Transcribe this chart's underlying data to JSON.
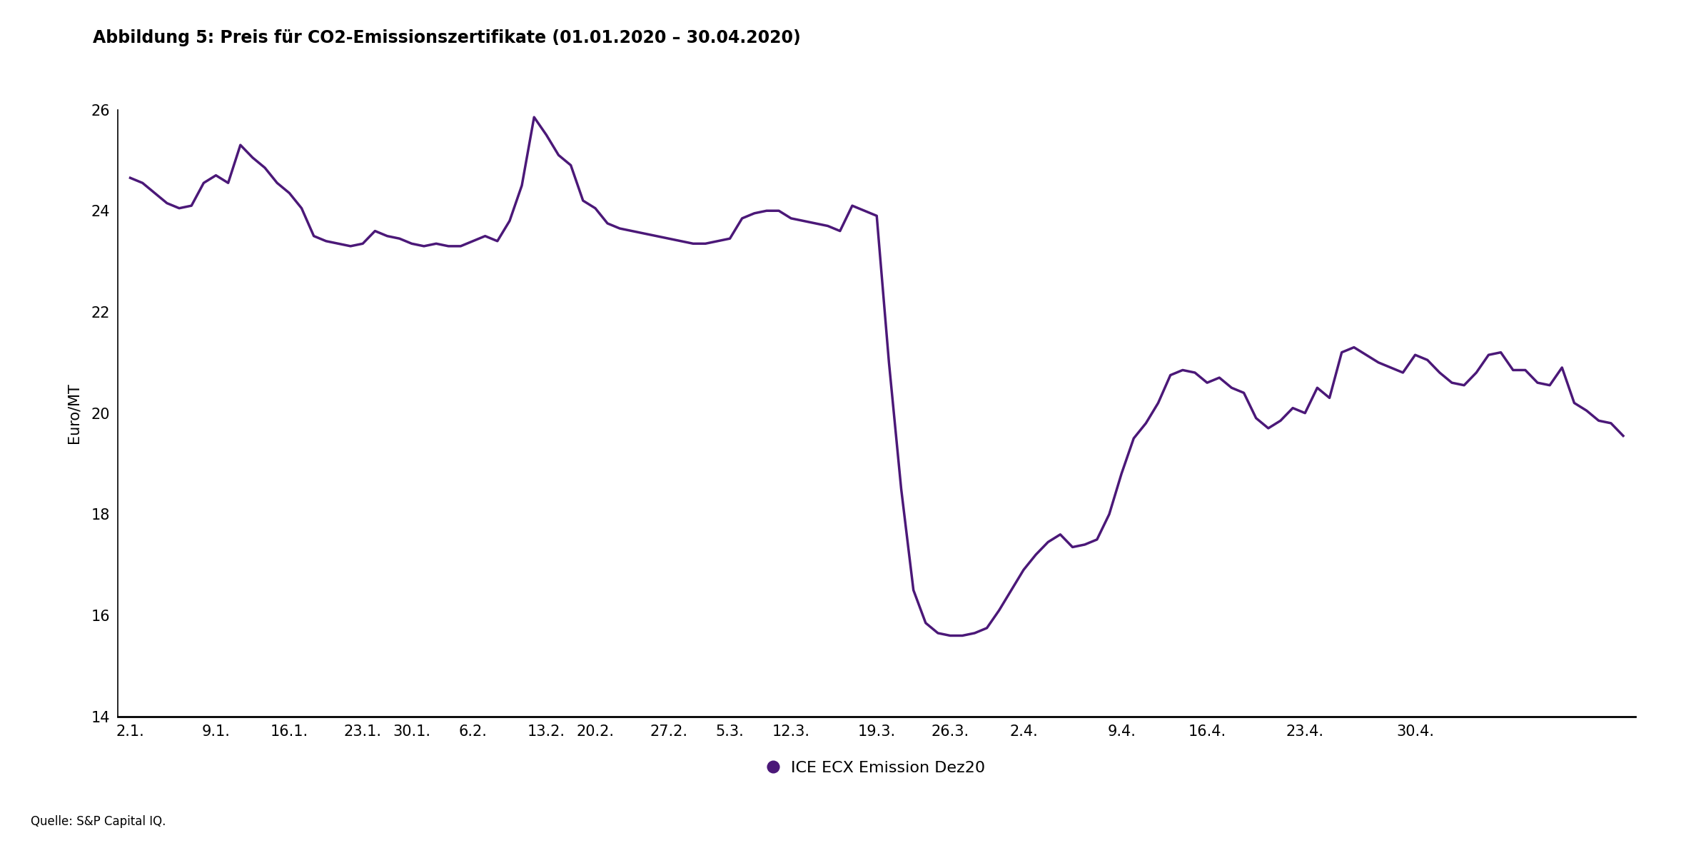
{
  "title": "Abbildung 5: Preis für CO2-Emissionszertifikate (01.01.2020 – 30.04.2020)",
  "ylabel": "Euro/MT",
  "source": "Quelle: S&P Capital IQ.",
  "legend_label": "ICE ECX Emission Dez20",
  "line_color": "#4B1878",
  "background_color": "#ffffff",
  "ylim": [
    14,
    26
  ],
  "yticks": [
    14,
    16,
    18,
    20,
    22,
    24,
    26
  ],
  "xtick_labels": [
    "2.1.",
    "9.1.",
    "16.1.",
    "23.1.",
    "30.1.",
    "6.2.",
    "13.2.",
    "20.2.",
    "27.2.",
    "5.3.",
    "12.3.",
    "19.3.",
    "26.3.",
    "2.4.",
    "9.4.",
    "16.4.",
    "23.4.",
    "30.4."
  ],
  "line_width": 2.5,
  "title_fontsize": 17,
  "axis_fontsize": 15,
  "tick_fontsize": 15,
  "source_fontsize": 12,
  "y_data": [
    24.65,
    24.55,
    24.35,
    24.15,
    24.05,
    24.1,
    24.55,
    24.7,
    24.55,
    25.3,
    25.05,
    24.85,
    24.55,
    24.35,
    24.05,
    23.5,
    23.4,
    23.35,
    23.3,
    23.35,
    23.6,
    23.5,
    23.45,
    23.35,
    23.3,
    23.35,
    23.3,
    23.3,
    23.4,
    23.5,
    23.4,
    23.8,
    24.5,
    25.85,
    25.5,
    25.1,
    24.9,
    24.2,
    24.05,
    23.75,
    23.65,
    23.6,
    23.55,
    23.5,
    23.45,
    23.4,
    23.35,
    23.35,
    23.4,
    23.45,
    23.85,
    23.95,
    24.0,
    24.0,
    23.85,
    23.8,
    23.75,
    23.7,
    23.6,
    24.1,
    24.0,
    23.9,
    21.0,
    18.5,
    16.5,
    15.85,
    15.65,
    15.6,
    15.6,
    15.65,
    15.75,
    16.1,
    16.5,
    16.9,
    17.2,
    17.45,
    17.6,
    17.35,
    17.4,
    17.5,
    18.0,
    18.8,
    19.5,
    19.8,
    20.2,
    20.75,
    20.85,
    20.8,
    20.6,
    20.7,
    20.5,
    20.4,
    19.9,
    19.7,
    19.85,
    20.1,
    20.0,
    20.5,
    20.3,
    21.2,
    21.3,
    21.15,
    21.0,
    20.9,
    20.8,
    21.15,
    21.05,
    20.8,
    20.6,
    20.55,
    20.8,
    21.15,
    21.2,
    20.85,
    20.85,
    20.6,
    20.55,
    20.9,
    20.2,
    20.05,
    19.85,
    19.8,
    19.55
  ],
  "x_tick_indices": [
    0,
    7,
    13,
    19,
    23,
    28,
    34,
    38,
    44,
    49,
    54,
    61,
    67,
    73,
    81,
    88,
    96,
    105
  ]
}
